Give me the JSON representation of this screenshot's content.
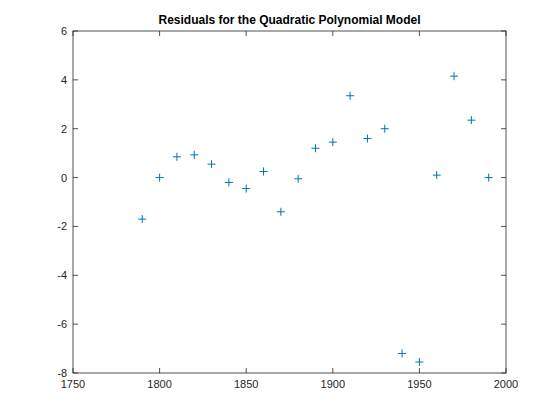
{
  "chart_data": {
    "type": "scatter",
    "title": "Residuals for the Quadratic Polynomial Model",
    "x": [
      1790,
      1800,
      1810,
      1820,
      1830,
      1840,
      1850,
      1860,
      1870,
      1880,
      1890,
      1900,
      1910,
      1920,
      1930,
      1940,
      1950,
      1960,
      1970,
      1980,
      1990
    ],
    "values": [
      -1.7,
      0,
      0.85,
      0.93,
      0.55,
      -0.2,
      -0.45,
      0.25,
      -1.4,
      -0.05,
      1.2,
      1.45,
      3.35,
      1.6,
      2.0,
      -7.2,
      -7.55,
      0.1,
      4.15,
      2.35,
      0
    ],
    "color": "#0072bd",
    "marker": "plus",
    "grid": false,
    "xlim": [
      1750,
      2000
    ],
    "xticks": [
      1750,
      1800,
      1850,
      1900,
      1950,
      2000
    ],
    "ylim": [
      -8,
      6
    ],
    "yticks": [
      -8,
      -6,
      -4,
      -2,
      0,
      2,
      4,
      6
    ]
  }
}
